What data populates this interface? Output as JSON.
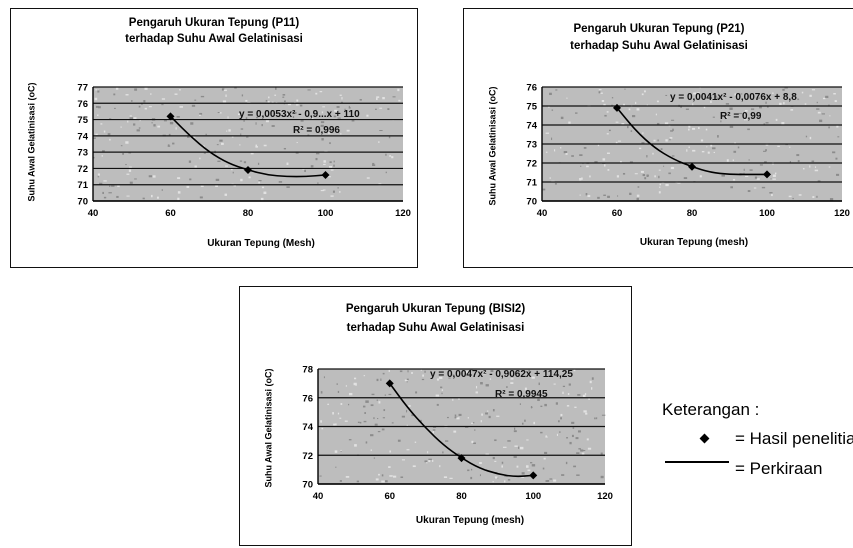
{
  "chart_data": [
    {
      "type": "scatter",
      "title": "Pengaruh Ukuran Tepung (P11)",
      "subtitle": "terhadap Suhu Awal Gelatinisasi",
      "ylabel": "Suhu Awal Gelatinisasi (oC)",
      "xlabel": "Ukuran Tepung (Mesh)",
      "xlim": [
        40,
        120
      ],
      "ylim": [
        70,
        77
      ],
      "x_ticks": [
        40,
        60,
        80,
        100,
        120
      ],
      "y_ticks": [
        70,
        71,
        72,
        73,
        74,
        75,
        76,
        77
      ],
      "series": [
        {
          "name": "Hasil penelitian",
          "x": [
            60,
            80,
            100
          ],
          "y": [
            75.2,
            71.9,
            71.6
          ]
        },
        {
          "name": "Perkiraan",
          "x": [
            60,
            65,
            70,
            75,
            80,
            85,
            90,
            95,
            100
          ],
          "y": [
            75.2,
            74.0,
            73.0,
            72.3,
            71.9,
            71.6,
            71.5,
            71.5,
            71.6
          ]
        }
      ],
      "equation": "y = 0,0053x² - 0,9...x + 110",
      "r2": "R² = 0,996",
      "grid": true
    },
    {
      "type": "scatter",
      "title": "Pengaruh Ukuran Tepung (P21)",
      "subtitle": "terhadap Suhu Awal Gelatinisasi",
      "ylabel": "Suhu Awal Gelatinisasi (oC)",
      "xlabel": "Ukuran Tepung (mesh)",
      "xlim": [
        40,
        120
      ],
      "ylim": [
        70,
        76
      ],
      "x_ticks": [
        40,
        60,
        80,
        100,
        120
      ],
      "y_ticks": [
        70,
        71,
        72,
        73,
        74,
        75,
        76
      ],
      "series": [
        {
          "name": "Hasil penelitian",
          "x": [
            60,
            80,
            100
          ],
          "y": [
            74.9,
            71.8,
            71.4
          ]
        },
        {
          "name": "Perkiraan",
          "x": [
            60,
            65,
            70,
            75,
            80,
            85,
            90,
            95,
            100
          ],
          "y": [
            74.9,
            73.7,
            72.8,
            72.2,
            71.8,
            71.5,
            71.4,
            71.4,
            71.4
          ]
        }
      ],
      "equation": "y = 0,0041x² - 0,0076x + 8,8",
      "r2": "R² = 0,99",
      "grid": true
    },
    {
      "type": "scatter",
      "title": "Pengaruh Ukuran Tepung (BISI2)",
      "subtitle": "terhadap Suhu Awal Gelatinisasi",
      "ylabel": "Suhu Awal Gelatinisasi (oC)",
      "xlabel": "Ukuran Tepung (mesh)",
      "xlim": [
        40,
        120
      ],
      "ylim": [
        70,
        78
      ],
      "x_ticks": [
        40,
        60,
        80,
        100,
        120
      ],
      "y_ticks": [
        70,
        72,
        74,
        76,
        78
      ],
      "series": [
        {
          "name": "Hasil penelitian",
          "x": [
            60,
            80,
            100
          ],
          "y": [
            77.0,
            71.8,
            70.6
          ]
        },
        {
          "name": "Perkiraan",
          "x": [
            60,
            65,
            70,
            75,
            80,
            85,
            90,
            95,
            100
          ],
          "y": [
            77.0,
            75.3,
            73.9,
            72.7,
            71.8,
            71.1,
            70.7,
            70.5,
            70.6
          ]
        }
      ],
      "equation": "y = 0,0047x² - 0,9062x + 114,25",
      "r2": "R² = 0,9945",
      "grid": true
    }
  ],
  "legend": {
    "heading": "Keterangan :",
    "marker_label": "= Hasil penelitian",
    "line_label": "= Perkiraan"
  }
}
